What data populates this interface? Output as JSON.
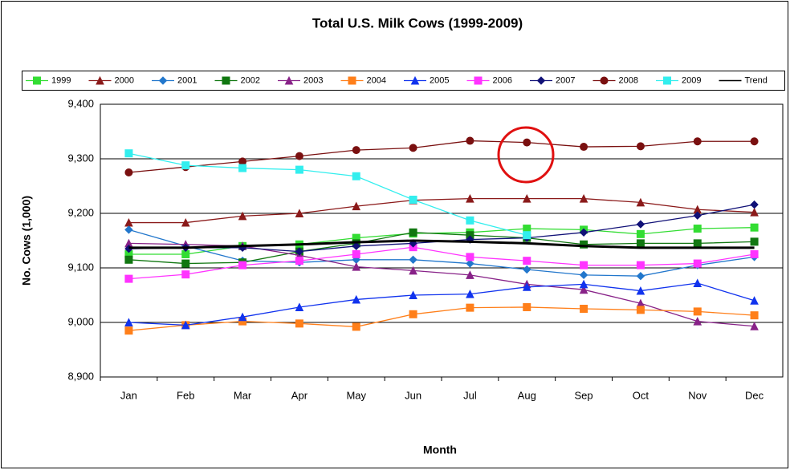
{
  "chart_data": {
    "type": "line",
    "title": "Total U.S. Milk Cows (1999-2009)",
    "xlabel": "Month",
    "ylabel": "No. Cows (1,000)",
    "categories": [
      "Jan",
      "Feb",
      "Mar",
      "Apr",
      "May",
      "Jun",
      "Jul",
      "Aug",
      "Sep",
      "Oct",
      "Nov",
      "Dec"
    ],
    "ylim": [
      8900,
      9400
    ],
    "yticks": [
      {
        "value": 8900,
        "label": "8,900"
      },
      {
        "value": 9000,
        "label": "9,000"
      },
      {
        "value": 9100,
        "label": "9,100"
      },
      {
        "value": 9200,
        "label": "9,200"
      },
      {
        "value": 9300,
        "label": "9,300"
      },
      {
        "value": 9400,
        "label": "9,400"
      }
    ],
    "grid": true,
    "legend": "top",
    "series": [
      {
        "name": "1999",
        "color": "#33dd33",
        "marker": "square",
        "values": [
          9125,
          9125,
          9140,
          9143,
          9155,
          9163,
          9165,
          9172,
          9170,
          9162,
          9172,
          9174
        ]
      },
      {
        "name": "2000",
        "color": "#8b1a1a",
        "marker": "triangle",
        "values": [
          9183,
          9183,
          9195,
          9200,
          9213,
          9224,
          9227,
          9227,
          9227,
          9220,
          9207,
          9202
        ]
      },
      {
        "name": "2001",
        "color": "#2277cc",
        "marker": "diamond",
        "values": [
          9170,
          9140,
          9113,
          9110,
          9115,
          9115,
          9108,
          9097,
          9087,
          9085,
          9105,
          9120
        ]
      },
      {
        "name": "2002",
        "color": "#117711",
        "marker": "square",
        "values": [
          9115,
          9108,
          9110,
          9130,
          9145,
          9165,
          9160,
          9155,
          9143,
          9145,
          9145,
          9148
        ]
      },
      {
        "name": "2003",
        "color": "#882288",
        "marker": "triangle",
        "values": [
          9145,
          9143,
          9140,
          9123,
          9102,
          9095,
          9087,
          9070,
          9060,
          9035,
          9002,
          8993
        ]
      },
      {
        "name": "2004",
        "color": "#ff7f1a",
        "marker": "square",
        "values": [
          8985,
          8995,
          9002,
          8998,
          8992,
          9015,
          9027,
          9028,
          9025,
          9023,
          9020,
          9013
        ]
      },
      {
        "name": "2005",
        "color": "#1133ee",
        "marker": "triangle",
        "values": [
          9000,
          8995,
          9010,
          9028,
          9042,
          9050,
          9052,
          9065,
          9070,
          9058,
          9072,
          9040
        ]
      },
      {
        "name": "2006",
        "color": "#ff33ff",
        "marker": "square",
        "values": [
          9080,
          9088,
          9105,
          9113,
          9125,
          9138,
          9120,
          9113,
          9105,
          9105,
          9108,
          9125
        ]
      },
      {
        "name": "2007",
        "color": "#111177",
        "marker": "diamond",
        "values": [
          9135,
          9137,
          9137,
          9130,
          9140,
          9145,
          9152,
          9155,
          9165,
          9180,
          9196,
          9216
        ]
      },
      {
        "name": "2008",
        "color": "#7a1010",
        "marker": "circle",
        "values": [
          9275,
          9285,
          9295,
          9305,
          9316,
          9320,
          9333,
          9330,
          9322,
          9323,
          9332,
          9332
        ]
      },
      {
        "name": "2009",
        "color": "#33eeee",
        "marker": "square",
        "values": [
          9310,
          9288,
          9283,
          9280,
          9268,
          9225,
          9187,
          9160,
          null,
          null,
          null,
          null
        ]
      },
      {
        "name": "Trend",
        "color": "#000000",
        "marker": "none",
        "width": 3,
        "values": [
          9137,
          9137,
          9140,
          9143,
          9147,
          9150,
          9148,
          9145,
          9140,
          9137,
          9137,
          9137
        ]
      }
    ]
  }
}
